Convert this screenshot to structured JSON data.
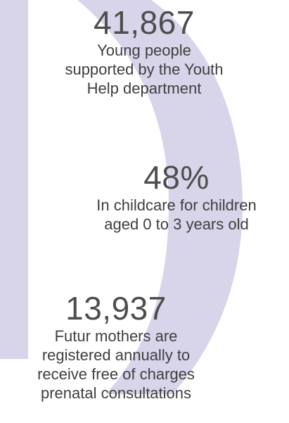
{
  "accent_color": "#d8d4ea",
  "stats": [
    {
      "value": "41,867",
      "description_lines": [
        "Young people",
        "supported by the Youth",
        "Help department"
      ]
    },
    {
      "value": "48%",
      "description_lines": [
        "In childcare for children",
        "aged 0 to 3 years old"
      ]
    },
    {
      "value": "13,937",
      "description_lines": [
        "Futur mothers are",
        "registered annually to",
        "receive free of charges",
        "prenatal consultations"
      ]
    }
  ]
}
